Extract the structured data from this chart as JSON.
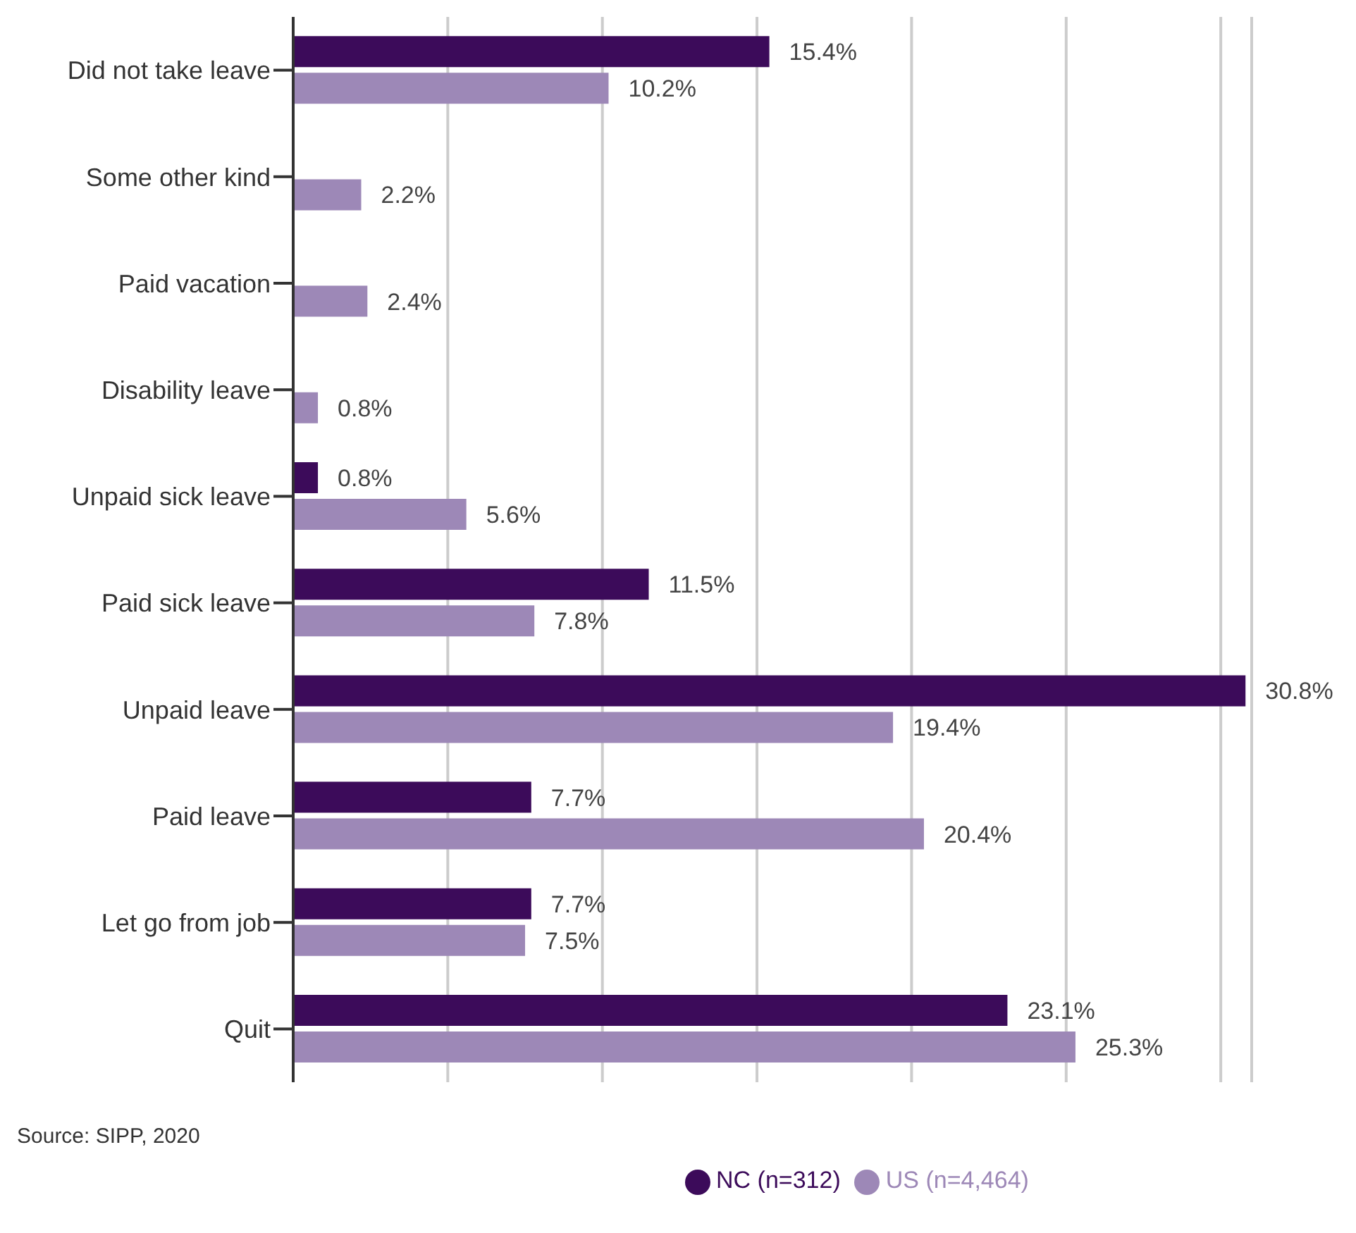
{
  "chart_data": {
    "type": "bar",
    "orientation": "horizontal",
    "categories": [
      "Did not take leave",
      "Some other kind",
      "Paid vacation",
      "Disability leave",
      "Unpaid sick leave",
      "Paid sick leave",
      "Unpaid leave",
      "Paid leave",
      "Let go from job",
      "Quit"
    ],
    "series": [
      {
        "name": "NC (n=312)",
        "color": "#3c0b5a",
        "values": [
          15.4,
          null,
          null,
          null,
          0.8,
          11.5,
          30.8,
          7.7,
          7.7,
          23.1
        ],
        "value_labels": [
          "15.4%",
          null,
          null,
          null,
          "0.8%",
          "11.5%",
          "30.8%",
          "7.7%",
          "7.7%",
          "23.1%"
        ]
      },
      {
        "name": "US (n=4,464)",
        "color": "#9d88b7",
        "values": [
          10.2,
          2.2,
          2.4,
          0.8,
          5.6,
          7.8,
          19.4,
          20.4,
          7.5,
          25.3
        ],
        "value_labels": [
          "10.2%",
          "2.2%",
          "2.4%",
          "0.8%",
          "5.6%",
          "7.8%",
          "19.4%",
          "20.4%",
          "7.5%",
          "25.3%"
        ]
      }
    ],
    "xlim": [
      0,
      31
    ],
    "xticks": [
      {
        "value": 0,
        "label": null
      },
      {
        "value": 5,
        "label": null
      },
      {
        "value": 10,
        "label": null
      },
      {
        "value": 15,
        "label": null
      },
      {
        "value": 20,
        "label": null
      },
      {
        "value": 25,
        "label": null
      },
      {
        "value": 30,
        "label": null
      }
    ],
    "tick_labels": "y",
    "grid": "x",
    "legend": "bottom",
    "annotations": [
      "Source: SIPP, 2020"
    ]
  }
}
